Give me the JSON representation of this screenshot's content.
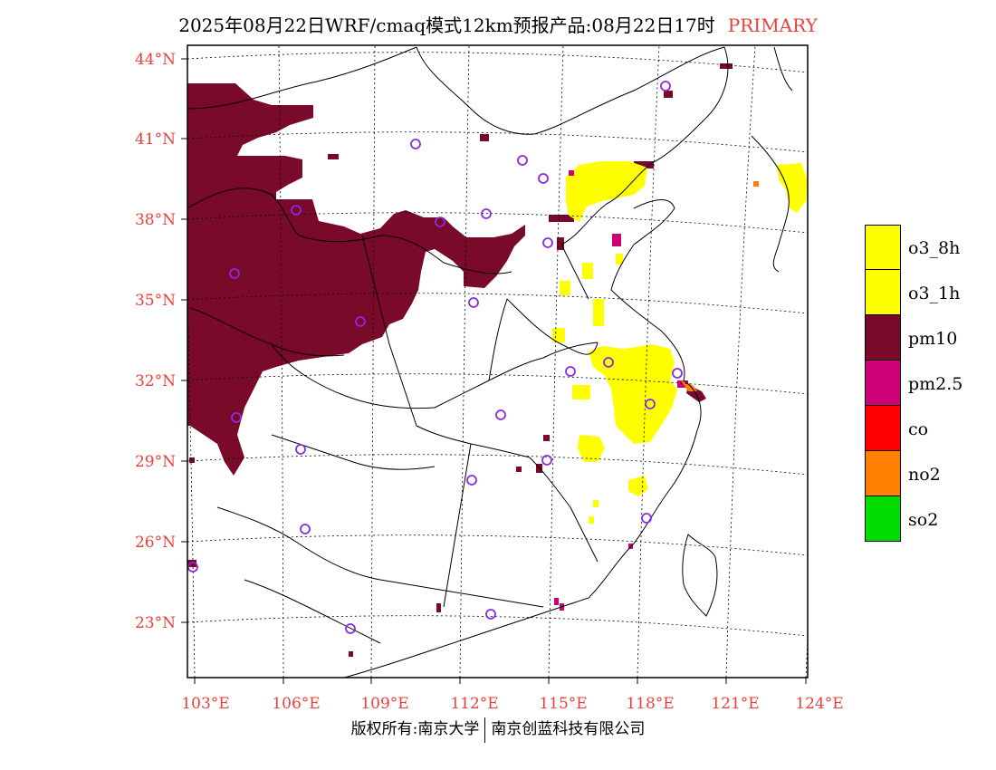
{
  "title": {
    "main": "2025年08月22日WRF/cmaq模式12km预报产品:08月22日17时",
    "tag": "PRIMARY"
  },
  "axes": {
    "lat_labels": [
      "44°N",
      "41°N",
      "38°N",
      "35°N",
      "32°N",
      "29°N",
      "26°N",
      "23°N"
    ],
    "lon_labels": [
      "103°E",
      "106°E",
      "109°E",
      "112°E",
      "115°E",
      "118°E",
      "121°E",
      "124°E"
    ]
  },
  "legend": [
    {
      "label": "o3_8h",
      "color": "#ffff00"
    },
    {
      "label": "o3_1h",
      "color": "#ffff00"
    },
    {
      "label": "pm10",
      "color": "#7a0a2a"
    },
    {
      "label": "pm2.5",
      "color": "#cc0077"
    },
    {
      "label": "co",
      "color": "#ff0000"
    },
    {
      "label": "no2",
      "color": "#ff7f00"
    },
    {
      "label": "so2",
      "color": "#00dd00"
    }
  ],
  "footer": {
    "left": "版权所有:南京大学",
    "right": "南京创蓝科技有限公司"
  },
  "colors": {
    "pm10": "#7a0a2a",
    "o3": "#ffff00",
    "pm25": "#cc0077",
    "no2": "#ff7f00",
    "city": "#8a2be2",
    "tick": "#e8403c"
  }
}
